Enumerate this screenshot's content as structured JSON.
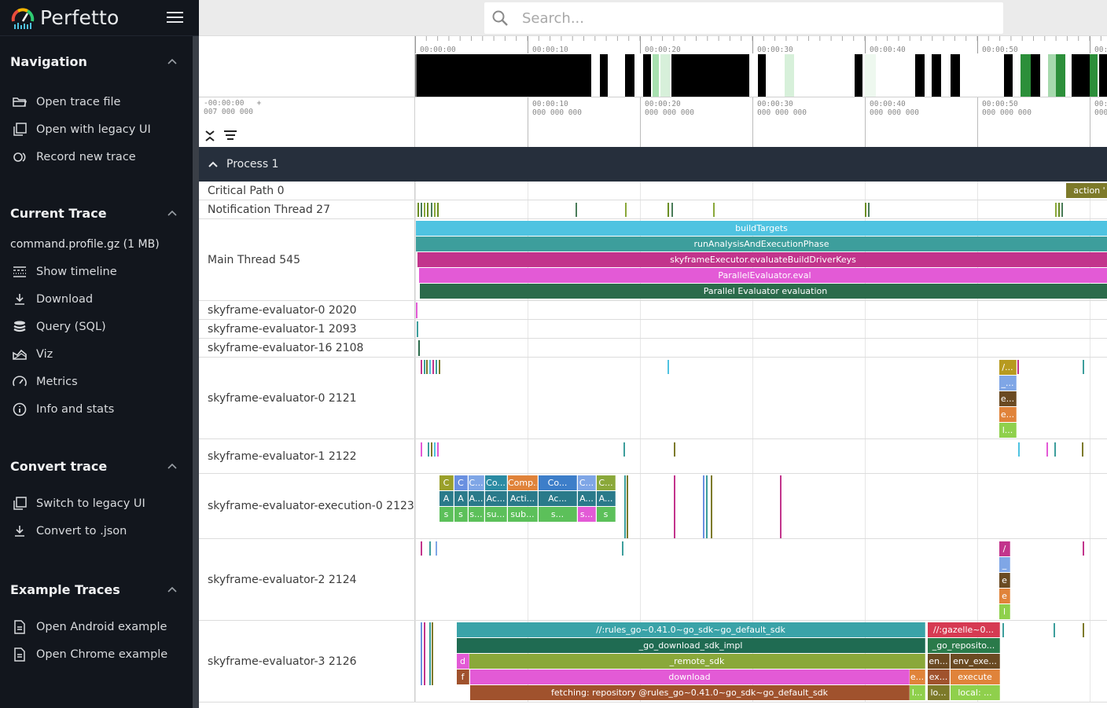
{
  "app": {
    "title": "Perfetto"
  },
  "search": {
    "placeholder": "Search..."
  },
  "sidebar": {
    "sections": [
      {
        "title": "Navigation",
        "items": [
          {
            "label": "Open trace file",
            "icon": "folder-open-icon"
          },
          {
            "label": "Open with legacy UI",
            "icon": "filter-none-icon"
          },
          {
            "label": "Record new trace",
            "icon": "fiber-smart-record-icon"
          }
        ]
      },
      {
        "title": "Current Trace",
        "trace_name": "command.profile.gz (1 MB)",
        "items": [
          {
            "label": "Show timeline",
            "icon": "line-style-icon"
          },
          {
            "label": "Download",
            "icon": "file-download-icon"
          },
          {
            "label": "Query (SQL)",
            "icon": "database-icon"
          },
          {
            "label": "Viz",
            "icon": "area-chart-icon"
          },
          {
            "label": "Metrics",
            "icon": "speed-icon"
          },
          {
            "label": "Info and stats",
            "icon": "info-icon"
          }
        ]
      },
      {
        "title": "Convert trace",
        "items": [
          {
            "label": "Switch to legacy UI",
            "icon": "filter-none-icon"
          },
          {
            "label": "Convert to .json",
            "icon": "file-download-icon"
          }
        ]
      },
      {
        "title": "Example Traces",
        "items": [
          {
            "label": "Open Android example",
            "icon": "description-icon"
          },
          {
            "label": "Open Chrome example",
            "icon": "description-icon"
          }
        ]
      }
    ]
  },
  "timeline": {
    "overview_ticks": [
      "00:00:00",
      "00:00:10",
      "00:00:20",
      "00:00:30",
      "00:00:40",
      "00:00:50",
      "00:"
    ],
    "axis_start": [
      "-00:00:00",
      "007 000 000"
    ],
    "axis_ticks": [
      [
        "00:00:10",
        "000 000 000"
      ],
      [
        "00:00:20",
        "000 000 000"
      ],
      [
        "00:00:30",
        "000 000 000"
      ],
      [
        "00:00:40",
        "000 000 000"
      ],
      [
        "00:00:50",
        "000 000 000"
      ],
      [
        "00:0",
        "000"
      ]
    ],
    "process_title": "Process 1"
  },
  "tracks": [
    {
      "name": "Critical Path 0"
    },
    {
      "name": "Notification Thread 27"
    },
    {
      "name": "Main Thread 545"
    },
    {
      "name": "skyframe-evaluator-0 2020"
    },
    {
      "name": "skyframe-evaluator-1 2093"
    },
    {
      "name": "skyframe-evaluator-16 2108"
    },
    {
      "name": "skyframe-evaluator-0 2121"
    },
    {
      "name": "skyframe-evaluator-1 2122"
    },
    {
      "name": "skyframe-evaluator-execution-0 2123"
    },
    {
      "name": "skyframe-evaluator-2 2124"
    },
    {
      "name": "skyframe-evaluator-3 2126"
    }
  ],
  "slices": {
    "critical_path": [
      "action '"
    ],
    "main_thread": [
      "buildTargets",
      "runAnalysisAndExecutionPhase",
      "skyframeExecutor.evaluateBuildDriverKeys",
      "ParallelEvaluator.eval",
      "Parallel Evaluator evaluation"
    ],
    "eval0_2121": [
      "/...",
      "_...",
      "e...",
      "e...",
      "l..."
    ],
    "exec0_row1": [
      "C",
      "C",
      "C...",
      "Co...",
      "Comp...",
      "Co...",
      "C...",
      "C..."
    ],
    "exec0_row2": [
      "A",
      "A",
      "A...",
      "Ac...",
      "Acti...",
      "Ac...",
      "A...",
      "A..."
    ],
    "exec0_row3": [
      "s",
      "s",
      "s...",
      "su...",
      "sub...",
      "s...",
      "s...",
      "s"
    ],
    "eval2_2124": [
      "/",
      "_",
      "e",
      "e",
      "l"
    ],
    "eval3_2126": {
      "main": [
        "//:rules_go~0.41.0~go_sdk~go_default_sdk",
        "_go_download_sdk_impl",
        "_remote_sdk",
        "download",
        "fetching: repository @rules_go~0.41.0~go_sdk~go_default_sdk"
      ],
      "small_left": [
        "d",
        "f"
      ],
      "small_right": [
        "e...",
        "l..."
      ],
      "right_col": [
        "//:gazelle~0...",
        "_go_reposito...",
        "en...",
        "env_exe...",
        "ex...",
        "execute",
        "lo...",
        "local: ..."
      ]
    }
  },
  "colors": {
    "sidebar_bg": "#12161d",
    "process_header_bg": "#262f3c",
    "cyan": "#4fc3e1",
    "teal": "#3d9e9c",
    "magenta": "#c2348c",
    "pink": "#e35ad6",
    "dark_green": "#2b6b4b",
    "olive": "#7d7a2a"
  }
}
